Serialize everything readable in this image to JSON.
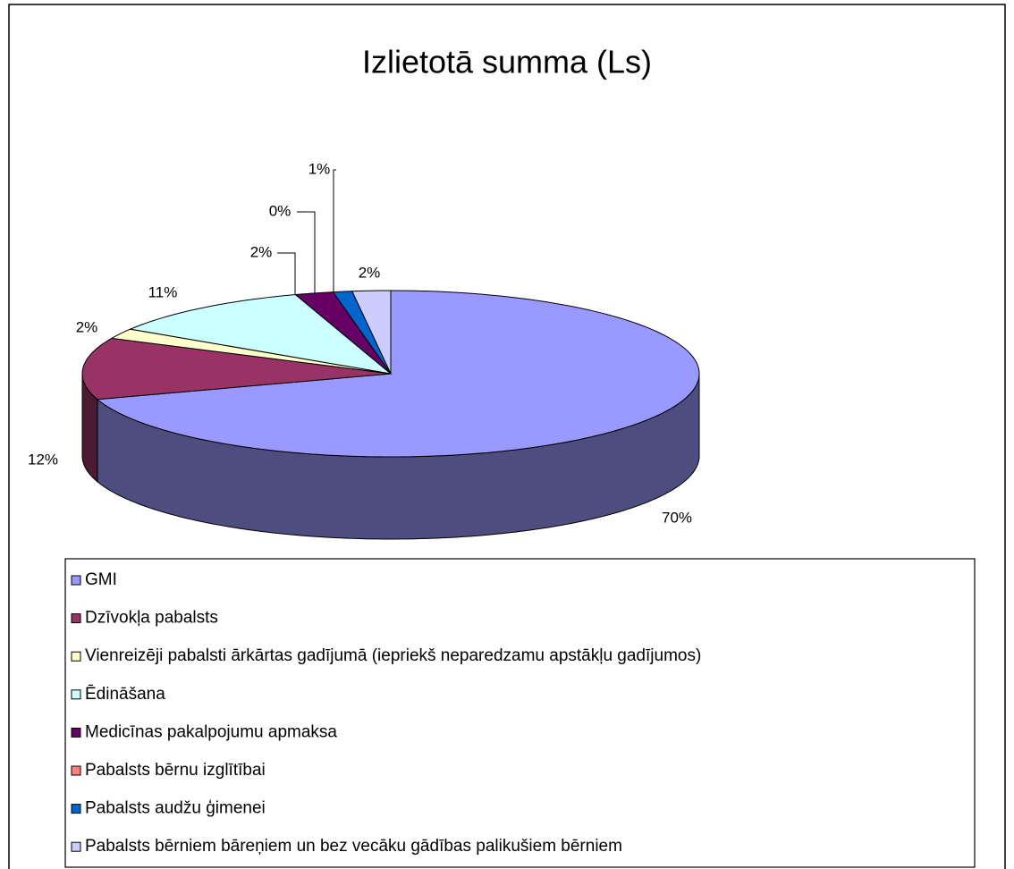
{
  "chart_data": {
    "type": "pie3d",
    "title": "Izlietotā summa (Ls)",
    "categories": [
      "GMI",
      "Dzīvokļa pabalsts",
      "Vienreizēji pabalsti ārkārtas gadījumā (iepriekš neparedzamu apstākļu gadījumos)",
      "Ēdināšana",
      "Medicīnas pakalpojumu apmaksa",
      "Pabalsts bērnu izglītībai",
      "Pabalsts audžu ģimenei",
      "Pabalsts bērniem bāreņiem un bez vecāku gādības palikušiem bērniem"
    ],
    "values": [
      70,
      12,
      2,
      11,
      2,
      0,
      1,
      2
    ],
    "value_labels": [
      "70%",
      "12%",
      "2%",
      "11%",
      "2%",
      "0%",
      "1%",
      "2%"
    ],
    "colors": [
      "#9999ff",
      "#993366",
      "#ffffcc",
      "#ccffff",
      "#660066",
      "#ff8080",
      "#0066cc",
      "#ccccff"
    ],
    "legend": "bottom"
  }
}
